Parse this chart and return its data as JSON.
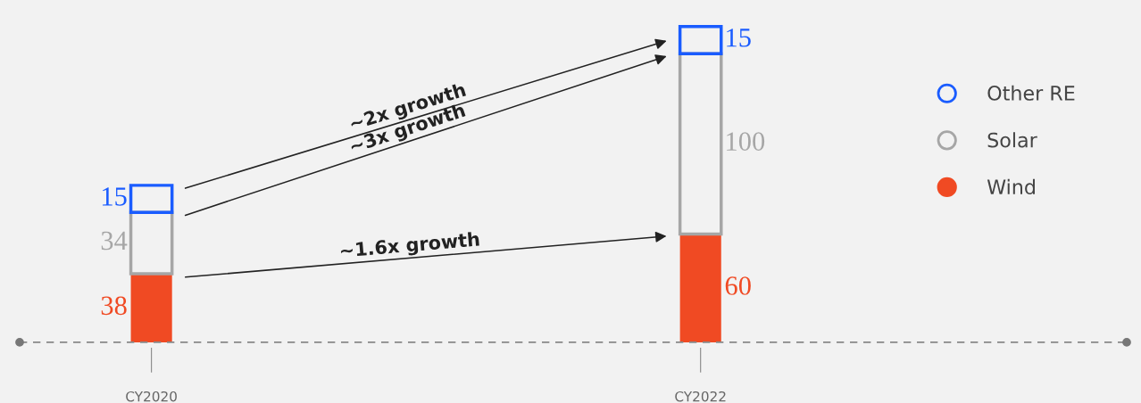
{
  "chart_data": {
    "type": "bar",
    "stacked": true,
    "categories": [
      "CY2020",
      "CY2022"
    ],
    "series": [
      {
        "name": "Wind",
        "color": "#f04a23",
        "values": [
          38,
          60
        ]
      },
      {
        "name": "Solar",
        "color": "#a6a6a6",
        "values": [
          34,
          100
        ]
      },
      {
        "name": "Other RE",
        "color": "#1a5cff",
        "values": [
          15,
          15
        ]
      }
    ],
    "data_labels": true,
    "legend": "right",
    "grid": false,
    "annotations": [
      "~2x growth",
      "~3x growth",
      "~1.6x growth"
    ]
  }
}
